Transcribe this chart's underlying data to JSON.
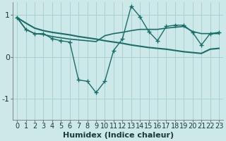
{
  "xlabel": "Humidex (Indice chaleur)",
  "bg_color": "#cce8e8",
  "grid_color": "#aad0d0",
  "line_color": "#1a6e6a",
  "x_data": [
    0,
    1,
    2,
    3,
    4,
    5,
    6,
    7,
    8,
    9,
    10,
    11,
    12,
    13,
    14,
    15,
    16,
    17,
    18,
    19,
    20,
    21,
    22,
    23
  ],
  "y1_data": [
    0.93,
    0.65,
    0.55,
    0.55,
    0.43,
    0.38,
    0.35,
    -0.55,
    -0.58,
    -0.85,
    -0.58,
    0.15,
    0.42,
    1.2,
    0.95,
    0.6,
    0.38,
    0.72,
    0.75,
    0.75,
    0.58,
    0.28,
    0.55,
    0.58
  ],
  "y2_data": [
    0.93,
    0.65,
    0.55,
    0.53,
    0.48,
    0.45,
    0.42,
    0.4,
    0.38,
    0.36,
    0.5,
    0.55,
    0.58,
    0.62,
    0.65,
    0.65,
    0.65,
    0.68,
    0.7,
    0.72,
    0.6,
    0.55,
    0.55,
    0.55
  ],
  "y3_data": [
    0.93,
    0.8,
    0.68,
    0.62,
    0.58,
    0.55,
    0.52,
    0.48,
    0.45,
    0.42,
    0.38,
    0.35,
    0.32,
    0.28,
    0.25,
    0.22,
    0.2,
    0.18,
    0.15,
    0.12,
    0.1,
    0.08,
    0.18,
    0.2
  ],
  "ylim": [
    -1.5,
    1.3
  ],
  "xlim": [
    -0.5,
    23.5
  ],
  "yticks": [
    -1,
    0,
    1
  ],
  "xticks": [
    0,
    1,
    2,
    3,
    4,
    5,
    6,
    7,
    8,
    9,
    10,
    11,
    12,
    13,
    14,
    15,
    16,
    17,
    18,
    19,
    20,
    21,
    22,
    23
  ],
  "xlabel_fontsize": 8,
  "tick_fontsize": 7
}
